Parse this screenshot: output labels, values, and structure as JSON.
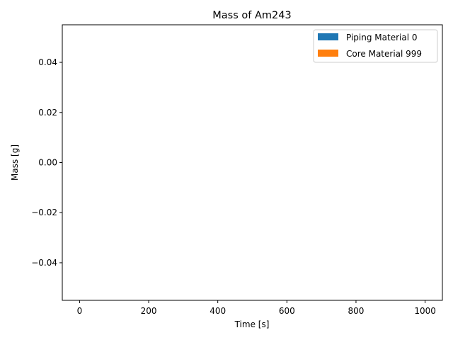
{
  "chart_data": {
    "type": "area",
    "title": "Mass of Am243",
    "xlabel": "Time [s]",
    "ylabel": "Mass [g]",
    "xlim": [
      -50,
      1050
    ],
    "ylim": [
      -0.055,
      0.055
    ],
    "x_ticks": [
      0,
      200,
      400,
      600,
      800,
      1000
    ],
    "x_tick_labels": [
      "0",
      "200",
      "400",
      "600",
      "800",
      "1000"
    ],
    "y_ticks": [
      -0.04,
      -0.02,
      0.0,
      0.02,
      0.04
    ],
    "y_tick_labels": [
      "−0.04",
      "−0.02",
      "0.00",
      "0.02",
      "0.04"
    ],
    "grid": false,
    "legend_position": "top-right",
    "series": [
      {
        "name": "Piping Material 0",
        "color": "#1f77b4",
        "x": [],
        "values": []
      },
      {
        "name": "Core Material 999",
        "color": "#ff7f0e",
        "x": [],
        "values": []
      }
    ]
  }
}
